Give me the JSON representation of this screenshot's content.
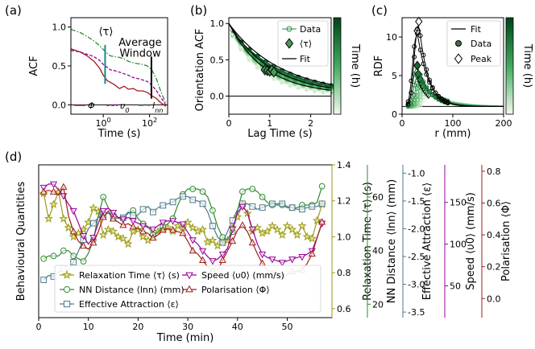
{
  "colors": {
    "phi": "#a01a1a",
    "v0": "#990099",
    "lnn": "#2e8b2e",
    "tau": "#9a9a1a",
    "eps": "#4a7a8c",
    "teal": "#1a8a8a",
    "dataGreen": "#2a8a4a",
    "greenDark": "#00441b",
    "greenLight": "#e5f5e0"
  },
  "chart_data": [
    {
      "panel": "(a)",
      "type": "line",
      "xlabel": "Time (s)",
      "ylabel": "ACF",
      "xscale": "log",
      "xlim": [
        0.04,
        600
      ],
      "ylim": [
        -0.12,
        1.12
      ],
      "xticks": [
        {
          "v": 1,
          "t": "10",
          "s": "0"
        },
        {
          "v": 100,
          "t": "10",
          "s": "2"
        }
      ],
      "yticks": [
        {
          "v": 0,
          "t": "0.0"
        },
        {
          "v": 0.5,
          "t": "0.5"
        },
        {
          "v": 1.0,
          "t": "1.0"
        }
      ],
      "annotations": [
        {
          "text": "⟨τ⟩",
          "at_x": 1.2,
          "color": "teal"
        },
        {
          "text": "Average",
          "line": 1
        },
        {
          "text": "Window",
          "line": 2
        }
      ],
      "window_line_x": 120,
      "tau_line_x": 1.2,
      "series": [
        {
          "name": "Φ",
          "key": "phi",
          "style": "solid",
          "x": [
            0.04,
            0.1,
            0.2,
            0.4,
            0.7,
            1,
            1.5,
            2,
            3,
            5,
            8,
            12,
            20,
            30,
            50,
            80,
            120,
            200,
            300,
            500
          ],
          "y": [
            0.72,
            0.68,
            0.63,
            0.56,
            0.47,
            0.38,
            0.31,
            0.29,
            0.26,
            0.21,
            0.24,
            0.2,
            0.21,
            0.18,
            0.18,
            0.16,
            0.12,
            0.08,
            0.03,
            -0.02
          ]
        },
        {
          "name": "υ0",
          "key": "v0",
          "style": "dashed",
          "x": [
            0.04,
            0.1,
            0.2,
            0.4,
            0.7,
            1,
            1.5,
            2,
            3,
            5,
            8,
            12,
            20,
            30,
            50,
            80,
            120,
            200,
            300,
            500
          ],
          "y": [
            0.7,
            0.68,
            0.65,
            0.62,
            0.57,
            0.52,
            0.48,
            0.45,
            0.44,
            0.42,
            0.4,
            0.38,
            0.35,
            0.34,
            0.32,
            0.3,
            0.26,
            0.18,
            0.1,
            0.0
          ]
        },
        {
          "name": "lnn",
          "key": "lnn",
          "style": "dashdot",
          "x": [
            0.04,
            0.1,
            0.2,
            0.4,
            0.7,
            1,
            1.5,
            2,
            3,
            5,
            8,
            12,
            20,
            30,
            50,
            80,
            120,
            200,
            300,
            500
          ],
          "y": [
            0.97,
            0.93,
            0.88,
            0.82,
            0.76,
            0.71,
            0.66,
            0.63,
            0.62,
            0.61,
            0.59,
            0.56,
            0.54,
            0.53,
            0.52,
            0.5,
            0.46,
            0.33,
            0.18,
            0.02
          ]
        }
      ],
      "legend": [
        {
          "label": "Φ",
          "key": "phi"
        },
        {
          "label": "υ",
          "sub": "0",
          "key": "v0"
        },
        {
          "label": "l",
          "sub": "nn",
          "key": "lnn"
        }
      ]
    },
    {
      "panel": "(b)",
      "type": "line",
      "xlabel": "Lag Time (s)",
      "ylabel": "Orientation ACF",
      "xlim": [
        0,
        2.5
      ],
      "ylim": [
        -0.25,
        1.08
      ],
      "xticks": [
        {
          "v": 0,
          "t": "0"
        },
        {
          "v": 1,
          "t": "1"
        },
        {
          "v": 2,
          "t": "2"
        }
      ],
      "yticks": [
        {
          "v": 0,
          "t": "0.0"
        },
        {
          "v": 0.5,
          "t": "0.5"
        },
        {
          "v": 1.0,
          "t": "1.0"
        }
      ],
      "colorbar": {
        "label": "Time (h)"
      },
      "decay_rates": [
        0.75,
        0.78,
        0.81,
        0.84,
        0.87,
        0.9,
        0.93,
        0.96,
        0.99,
        1.02,
        1.05,
        1.08,
        1.11,
        1.14,
        1.17,
        1.2,
        1.24
      ],
      "tau_points": [
        {
          "x": 0.88,
          "y": 0.36
        },
        {
          "x": 0.94,
          "y": 0.35
        },
        {
          "x": 1.0,
          "y": 0.34
        },
        {
          "x": 1.05,
          "y": 0.36
        },
        {
          "x": 1.1,
          "y": 0.33
        }
      ],
      "legend": [
        {
          "label": "Data",
          "marker": "circle"
        },
        {
          "label": "⟨τ⟩",
          "marker": "diamond"
        },
        {
          "label": "Fit",
          "marker": "line"
        }
      ]
    },
    {
      "panel": "(c)",
      "type": "line",
      "xlabel": "r (mm)",
      "ylabel": "RDF",
      "xlim": [
        0,
        200
      ],
      "ylim": [
        0,
        12.5
      ],
      "xticks": [
        {
          "v": 0,
          "t": "0"
        },
        {
          "v": 100,
          "t": "100"
        },
        {
          "v": 200,
          "t": "200"
        }
      ],
      "yticks": [
        {
          "v": 0,
          "t": "0"
        },
        {
          "v": 5,
          "t": "5"
        },
        {
          "v": 10,
          "t": "10"
        }
      ],
      "colorbar": {
        "label": "Time (h)"
      },
      "peak_heights": [
        12.0,
        10.8,
        6.3,
        5.2,
        4.6,
        4.2,
        3.8,
        3.5,
        3.2,
        3.0,
        2.8,
        2.6
      ],
      "peak_positions": [
        33,
        30,
        30,
        32,
        35,
        37,
        40,
        42,
        45,
        47,
        50,
        52
      ],
      "legend": [
        {
          "label": "Fit",
          "marker": "line"
        },
        {
          "label": "Data",
          "marker": "circle"
        },
        {
          "label": "Peak",
          "marker": "diamond"
        }
      ]
    },
    {
      "panel": "(d)",
      "type": "line",
      "xlabel": "Time (min)",
      "ylabel": "Behavioural Quantities",
      "xlim": [
        0,
        59
      ],
      "xticks": [
        0,
        10,
        20,
        30,
        40,
        50
      ],
      "axes": [
        {
          "key": "tau",
          "label": "Relaxation Time ⟨τ⟩ (s)",
          "lim": [
            0.55,
            1.4
          ],
          "ticks": [
            0.6,
            0.8,
            1.0,
            1.2,
            1.4
          ],
          "tick_labels": [
            "0.6",
            "0.8",
            "1.0",
            "1.2",
            "1.4"
          ]
        },
        {
          "key": "lnn",
          "label": "NN Distance ⟨lnn⟩ (mm)",
          "lim": [
            15,
            72
          ],
          "ticks": [
            20,
            40,
            60
          ],
          "tick_labels": [
            "20",
            "40",
            "60"
          ]
        },
        {
          "key": "eps",
          "label": "Effective Attraction ⟨ε⟩",
          "lim": [
            -3.6,
            -0.85
          ],
          "ticks": [
            -1.0,
            -1.5,
            -2.0,
            -2.5,
            -3.0,
            -3.5
          ],
          "tick_labels": [
            "-1.0",
            "-1.5",
            "-2.0",
            "-2.5",
            "-3.0",
            "-3.5"
          ]
        },
        {
          "key": "v0",
          "label": "Speed ⟨υ0⟩ (mm/s)",
          "lim": [
            12,
            195
          ],
          "ticks": [
            50,
            100,
            150
          ],
          "tick_labels": [
            "50",
            "100",
            "150"
          ]
        },
        {
          "key": "phi",
          "label": "Polarisation ⟨Φ⟩",
          "lim": [
            -0.12,
            0.84
          ],
          "ticks": [
            0.0,
            0.2,
            0.4,
            0.6,
            0.8
          ],
          "tick_labels": [
            "0.0",
            "0.2",
            "0.4",
            "0.6",
            "0.8"
          ]
        }
      ],
      "series": [
        {
          "name": "Relaxation Time ⟨τ⟩ (s)",
          "key": "tau",
          "marker": "star",
          "x": [
            1,
            2,
            3,
            4,
            5,
            6,
            7,
            8,
            9,
            10,
            11,
            12,
            13,
            14,
            15,
            16,
            17,
            18,
            19,
            20,
            21,
            22,
            23,
            24,
            25,
            26,
            27,
            28,
            29,
            30,
            31,
            32,
            33,
            34,
            35,
            36,
            37,
            38,
            39,
            40,
            41,
            42,
            43,
            44,
            45,
            46,
            47,
            48,
            49,
            50,
            51,
            52,
            53,
            54,
            55,
            56,
            57
          ],
          "y": [
            1.24,
            1.1,
            1.18,
            1.25,
            1.1,
            1.05,
            1.0,
            1.02,
            1.04,
            1.08,
            1.16,
            1.14,
            1.01,
            1.04,
            1.03,
            1.0,
            0.99,
            0.96,
            1.03,
            1.04,
            1.0,
            0.98,
            1.0,
            1.03,
            1.04,
            1.05,
            1.03,
            1.06,
            1.05,
            1.08,
            1.05,
            1.03,
            1.04,
            0.97,
            0.98,
            0.95,
            0.97,
            0.98,
            1.05,
            1.11,
            1.18,
            1.13,
            1.03,
            1.05,
            1.02,
            1.03,
            1.06,
            1.04,
            1.01,
            1.06,
            1.04,
            1.01,
            1.06,
            1.0,
            0.99,
            1.09,
            1.18
          ]
        },
        {
          "name": "NN Distance ⟨lnn⟩ (mm)",
          "key": "lnn",
          "marker": "circle",
          "x": [
            1,
            2,
            3,
            4,
            5,
            6,
            7,
            8,
            9,
            10,
            11,
            12,
            13,
            14,
            15,
            16,
            17,
            18,
            19,
            20,
            21,
            22,
            23,
            24,
            25,
            26,
            27,
            28,
            29,
            30,
            31,
            32,
            33,
            34,
            35,
            36,
            37,
            38,
            39,
            40,
            41,
            42,
            43,
            44,
            45,
            46,
            47,
            48,
            49,
            50,
            51,
            52,
            53,
            54,
            55,
            56,
            57
          ],
          "y": [
            37,
            38,
            38,
            38,
            40,
            40,
            38,
            37,
            36,
            39,
            44,
            53,
            60,
            56,
            53,
            52,
            52,
            54,
            55,
            52,
            50,
            49,
            46,
            47,
            49,
            50,
            52,
            57,
            61,
            63,
            63,
            63,
            62,
            60,
            55,
            49,
            45,
            44,
            47,
            55,
            62,
            63,
            63,
            62,
            60,
            58,
            57,
            57,
            57,
            56,
            56,
            56,
            57,
            57,
            57,
            58,
            64
          ]
        },
        {
          "name": "Effective Attraction ⟨ε⟩",
          "key": "eps",
          "marker": "square",
          "x": [
            1,
            2,
            3,
            4,
            5,
            6,
            7,
            8,
            9,
            10,
            11,
            12,
            13,
            14,
            15,
            16,
            17,
            18,
            19,
            20,
            21,
            22,
            23,
            24,
            25,
            26,
            27,
            28,
            29,
            30,
            31,
            32,
            33,
            34,
            35,
            36,
            37,
            38,
            39,
            40,
            41,
            42,
            43,
            44,
            45,
            46,
            47,
            48,
            49,
            50,
            51,
            52,
            53,
            54,
            55,
            56,
            57
          ],
          "y": [
            -2.92,
            -2.84,
            -2.86,
            -2.78,
            -2.72,
            -2.75,
            -2.6,
            -2.4,
            -2.2,
            -2.0,
            -1.9,
            -1.8,
            -1.75,
            -1.72,
            -1.78,
            -1.8,
            -1.8,
            -1.7,
            -1.76,
            -1.75,
            -1.65,
            -1.6,
            -1.7,
            -1.62,
            -1.58,
            -1.55,
            -1.52,
            -1.45,
            -1.42,
            -1.42,
            -1.48,
            -1.5,
            -1.55,
            -1.7,
            -1.95,
            -2.15,
            -2.25,
            -2.05,
            -1.85,
            -1.65,
            -1.55,
            -1.55,
            -1.6,
            -1.65,
            -1.62,
            -1.58,
            -1.55,
            -1.55,
            -1.55,
            -1.6,
            -1.62,
            -1.65,
            -1.65,
            -1.62,
            -1.6,
            -1.6,
            -1.55
          ]
        },
        {
          "name": "Speed ⟨υ0⟩ (mm/s)",
          "key": "v0",
          "marker": "tri_down",
          "x": [
            1,
            2,
            3,
            4,
            5,
            6,
            7,
            8,
            9,
            10,
            11,
            12,
            13,
            14,
            15,
            16,
            17,
            18,
            19,
            20,
            21,
            22,
            23,
            24,
            25,
            26,
            27,
            28,
            29,
            30,
            31,
            32,
            33,
            34,
            35,
            36,
            37,
            38,
            39,
            40,
            41,
            42,
            43,
            44,
            45,
            46,
            47,
            48,
            49,
            50,
            51,
            52,
            53,
            54,
            55,
            56,
            57
          ],
          "y": [
            168,
            172,
            172,
            165,
            158,
            148,
            140,
            125,
            110,
            100,
            108,
            125,
            140,
            143,
            138,
            132,
            130,
            132,
            128,
            125,
            122,
            120,
            118,
            122,
            126,
            128,
            128,
            126,
            124,
            114,
            105,
            100,
            92,
            85,
            80,
            82,
            88,
            95,
            118,
            138,
            145,
            138,
            118,
            100,
            88,
            84,
            82,
            80,
            78,
            80,
            82,
            84,
            85,
            88,
            92,
            108,
            125
          ]
        },
        {
          "name": "Polarisation ⟨Φ⟩",
          "key": "phi",
          "marker": "tri_up",
          "x": [
            1,
            2,
            3,
            4,
            5,
            6,
            7,
            8,
            9,
            10,
            11,
            12,
            13,
            14,
            15,
            16,
            17,
            18,
            19,
            20,
            21,
            22,
            23,
            24,
            25,
            26,
            27,
            28,
            29,
            30,
            31,
            32,
            33,
            34,
            35,
            36,
            37,
            38,
            39,
            40,
            41,
            42,
            43,
            44,
            45,
            46,
            47,
            48,
            49,
            50,
            51,
            52,
            53,
            54,
            55,
            56,
            57
          ],
          "y": [
            0.67,
            0.68,
            0.67,
            0.65,
            0.7,
            0.52,
            0.42,
            0.36,
            0.33,
            0.31,
            0.35,
            0.42,
            0.51,
            0.55,
            0.5,
            0.48,
            0.46,
            0.47,
            0.45,
            0.44,
            0.42,
            0.41,
            0.38,
            0.4,
            0.43,
            0.44,
            0.43,
            0.42,
            0.41,
            0.36,
            0.3,
            0.28,
            0.24,
            0.2,
            0.17,
            0.18,
            0.24,
            0.3,
            0.36,
            0.43,
            0.46,
            0.42,
            0.35,
            0.28,
            0.22,
            0.18,
            0.16,
            0.15,
            0.14,
            0.15,
            0.17,
            0.17,
            0.18,
            0.22,
            0.28,
            0.38,
            0.48
          ]
        }
      ]
    }
  ]
}
